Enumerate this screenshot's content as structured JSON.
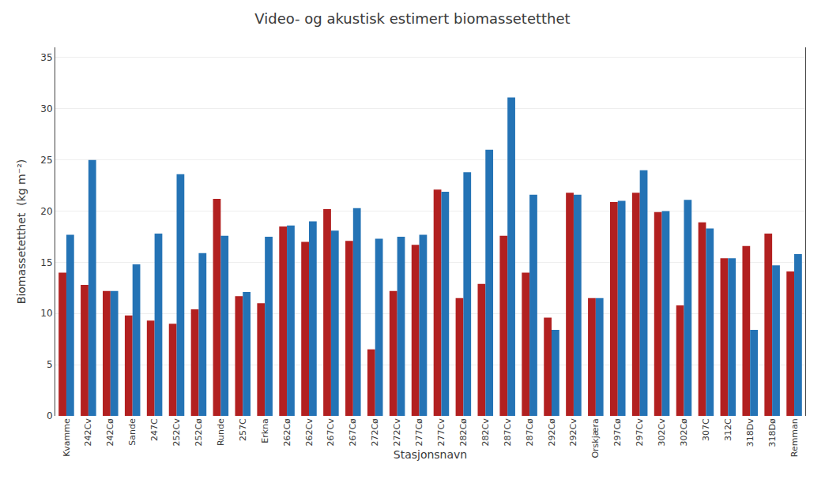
{
  "chart_data": {
    "type": "bar",
    "title": "Video- og akustisk estimert biomassetetthet",
    "xlabel": "Stasjonsnavn",
    "ylabel": "Biomassetetthet  (kg m⁻²)",
    "categories": [
      "Kvamme",
      "242Cv",
      "242Cø",
      "Sande",
      "247C",
      "252Cv",
      "252Cø",
      "Runde",
      "257C",
      "Erkna",
      "262Cø",
      "262Cv",
      "267Cv",
      "267Cø",
      "272Cø",
      "272Cv",
      "277Cø",
      "277Cv",
      "282Cø",
      "282Cv",
      "287Cv",
      "287Cø",
      "292Cø",
      "292Cv",
      "Orskjæra",
      "297Cø",
      "297Cv",
      "302Cv",
      "302Cø",
      "307C",
      "312C",
      "318Dv",
      "318Dø",
      "Remman"
    ],
    "series": [
      {
        "color": "#b22020",
        "values": [
          14.0,
          12.8,
          12.2,
          9.8,
          9.3,
          9.0,
          10.4,
          21.2,
          11.7,
          11.0,
          18.5,
          17.0,
          20.2,
          17.1,
          6.5,
          12.2,
          16.7,
          22.1,
          11.5,
          12.9,
          17.6,
          14.0,
          9.6,
          21.8,
          11.5,
          20.9,
          21.8,
          19.9,
          10.8,
          18.9,
          15.4,
          16.6,
          17.8,
          14.1
        ]
      },
      {
        "color": "#2473b5",
        "values": [
          17.7,
          25.0,
          12.2,
          14.8,
          17.8,
          23.6,
          15.9,
          17.6,
          12.1,
          17.5,
          18.6,
          19.0,
          18.1,
          20.3,
          17.3,
          17.5,
          17.7,
          21.9,
          23.8,
          26.0,
          31.1,
          21.6,
          8.4,
          21.6,
          11.5,
          21.0,
          24.0,
          20.0,
          21.1,
          18.3,
          15.4,
          8.4,
          14.7,
          15.8
        ]
      }
    ],
    "ylim": [
      0,
      36
    ],
    "yticks": [
      0,
      5,
      10,
      15,
      20,
      25,
      30,
      35
    ],
    "grid": true
  }
}
